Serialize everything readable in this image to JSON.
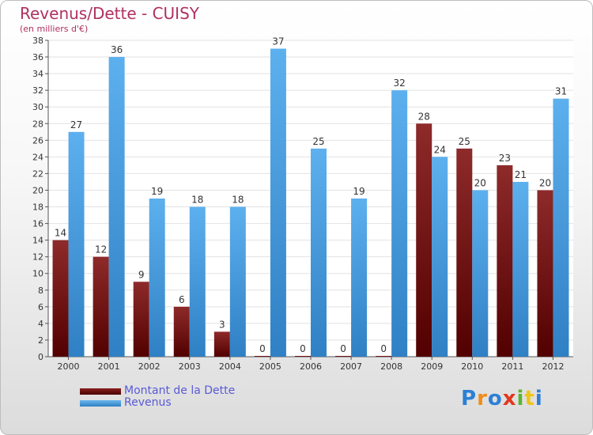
{
  "chart_data": {
    "type": "bar",
    "title": "Revenus/Dette - CUISY",
    "subtitle": "(en milliers d'€)",
    "categories": [
      "2000",
      "2001",
      "2002",
      "2003",
      "2004",
      "2005",
      "2006",
      "2007",
      "2008",
      "2009",
      "2010",
      "2011",
      "2012"
    ],
    "series": [
      {
        "name": "Montant de la Dette",
        "color": "#7a1414",
        "values": [
          14,
          12,
          9,
          6,
          3,
          0,
          0,
          0,
          0,
          28,
          25,
          23,
          20
        ]
      },
      {
        "name": "Revenus",
        "color": "#4aa3e6",
        "values": [
          27,
          36,
          19,
          18,
          18,
          37,
          25,
          19,
          32,
          24,
          20,
          21,
          31
        ]
      }
    ],
    "ylim": [
      0,
      38
    ],
    "yticks": [
      0,
      2,
      4,
      6,
      8,
      10,
      12,
      14,
      16,
      18,
      20,
      22,
      24,
      26,
      28,
      30,
      32,
      34,
      36,
      38
    ],
    "grid": true,
    "legend_position": "bottom-left"
  },
  "logo": {
    "text": "Proxiti",
    "letters": [
      "P",
      "r",
      "o",
      "x",
      "i",
      "t",
      "i"
    ],
    "colors": [
      "#2c7fd6",
      "#f08c1a",
      "#2c7fd6",
      "#e0371f",
      "#5db32f",
      "#f0c419",
      "#2c7fd6"
    ]
  }
}
